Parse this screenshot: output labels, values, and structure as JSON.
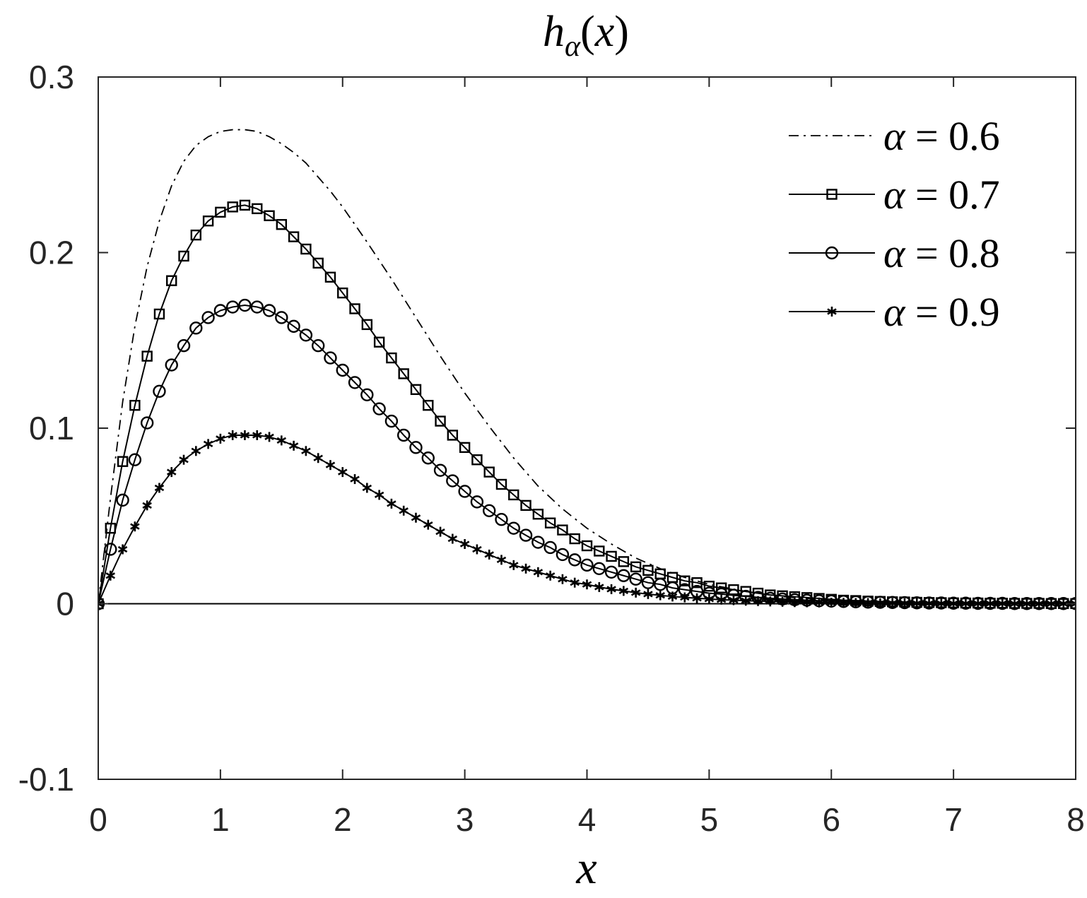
{
  "chart_data": {
    "type": "line",
    "title": {
      "base": "h",
      "subscript": "α",
      "argument": "x"
    },
    "xlabel": "x",
    "ylabel": "",
    "xlim": [
      0,
      8
    ],
    "ylim": [
      -0.1,
      0.3
    ],
    "xticks": [
      "0",
      "1",
      "2",
      "3",
      "4",
      "5",
      "6",
      "7",
      "8"
    ],
    "yticks": [
      "-0.1",
      "0",
      "0.1",
      "0.2",
      "0.3"
    ],
    "grid": false,
    "legend_position": "top-right",
    "zero_line": true,
    "sample_step": 0.1,
    "series": [
      {
        "name": "α = 0.6",
        "label_alpha": "α",
        "label_rest": " = 0.6",
        "line_style": "dashdot",
        "marker": "none",
        "color": "#000000",
        "points": [
          [
            0,
            0
          ],
          [
            0.1,
            0.06
          ],
          [
            0.2,
            0.115
          ],
          [
            0.3,
            0.158
          ],
          [
            0.4,
            0.192
          ],
          [
            0.5,
            0.218
          ],
          [
            0.6,
            0.238
          ],
          [
            0.7,
            0.252
          ],
          [
            0.8,
            0.261
          ],
          [
            0.9,
            0.266
          ],
          [
            1.0,
            0.269
          ],
          [
            1.1,
            0.27
          ],
          [
            1.2,
            0.27
          ],
          [
            1.3,
            0.269
          ],
          [
            1.4,
            0.266
          ],
          [
            1.5,
            0.262
          ],
          [
            1.6,
            0.257
          ],
          [
            1.7,
            0.251
          ],
          [
            1.8,
            0.243
          ],
          [
            1.9,
            0.235
          ],
          [
            2.0,
            0.226
          ],
          [
            2.2,
            0.206
          ],
          [
            2.4,
            0.185
          ],
          [
            2.6,
            0.163
          ],
          [
            2.8,
            0.141
          ],
          [
            3.0,
            0.12
          ],
          [
            3.2,
            0.101
          ],
          [
            3.4,
            0.083
          ],
          [
            3.6,
            0.067
          ],
          [
            3.8,
            0.054
          ],
          [
            4.0,
            0.043
          ],
          [
            4.2,
            0.034
          ],
          [
            4.4,
            0.026
          ],
          [
            4.6,
            0.02
          ],
          [
            4.8,
            0.015
          ],
          [
            5.0,
            0.011
          ],
          [
            5.3,
            0.007
          ],
          [
            5.6,
            0.004
          ],
          [
            6.0,
            0.002
          ],
          [
            6.5,
            0.001
          ],
          [
            7.0,
            0.0004
          ],
          [
            8.0,
            0.0
          ]
        ]
      },
      {
        "name": "α = 0.7",
        "label_alpha": "α",
        "label_rest": " = 0.7",
        "line_style": "solid",
        "marker": "square",
        "color": "#000000",
        "points": [
          [
            0,
            0
          ],
          [
            0.1,
            0.043
          ],
          [
            0.2,
            0.081
          ],
          [
            0.3,
            0.113
          ],
          [
            0.4,
            0.141
          ],
          [
            0.5,
            0.165
          ],
          [
            0.6,
            0.184
          ],
          [
            0.7,
            0.198
          ],
          [
            0.8,
            0.21
          ],
          [
            0.9,
            0.218
          ],
          [
            1.0,
            0.223
          ],
          [
            1.1,
            0.226
          ],
          [
            1.2,
            0.227
          ],
          [
            1.3,
            0.225
          ],
          [
            1.4,
            0.221
          ],
          [
            1.5,
            0.216
          ],
          [
            1.6,
            0.209
          ],
          [
            1.7,
            0.202
          ],
          [
            1.8,
            0.194
          ],
          [
            1.9,
            0.186
          ],
          [
            2.0,
            0.177
          ],
          [
            2.1,
            0.168
          ],
          [
            2.2,
            0.159
          ],
          [
            2.3,
            0.149
          ],
          [
            2.4,
            0.14
          ],
          [
            2.5,
            0.131
          ],
          [
            2.6,
            0.122
          ],
          [
            2.7,
            0.113
          ],
          [
            2.8,
            0.104
          ],
          [
            2.9,
            0.096
          ],
          [
            3.0,
            0.089
          ],
          [
            3.1,
            0.082
          ],
          [
            3.2,
            0.075
          ],
          [
            3.3,
            0.068
          ],
          [
            3.4,
            0.062
          ],
          [
            3.5,
            0.056
          ],
          [
            3.6,
            0.051
          ],
          [
            3.7,
            0.046
          ],
          [
            3.8,
            0.042
          ],
          [
            3.9,
            0.037
          ],
          [
            4.0,
            0.033
          ],
          [
            4.1,
            0.03
          ],
          [
            4.2,
            0.027
          ],
          [
            4.3,
            0.024
          ],
          [
            4.4,
            0.021
          ],
          [
            4.5,
            0.019
          ],
          [
            4.6,
            0.017
          ],
          [
            4.7,
            0.015
          ],
          [
            4.8,
            0.013
          ],
          [
            4.9,
            0.012
          ],
          [
            5.0,
            0.01
          ],
          [
            5.1,
            0.009
          ],
          [
            5.2,
            0.008
          ],
          [
            5.3,
            0.007
          ],
          [
            5.4,
            0.006
          ],
          [
            5.5,
            0.005
          ],
          [
            5.6,
            0.0045
          ],
          [
            5.7,
            0.004
          ],
          [
            5.8,
            0.0035
          ],
          [
            5.9,
            0.003
          ],
          [
            6.0,
            0.0025
          ],
          [
            6.1,
            0.002
          ],
          [
            6.2,
            0.0018
          ],
          [
            6.3,
            0.0015
          ],
          [
            6.4,
            0.0013
          ],
          [
            6.5,
            0.0011
          ],
          [
            6.6,
            0.001
          ],
          [
            6.7,
            0.0008
          ],
          [
            6.8,
            0.0007
          ],
          [
            6.9,
            0.0006
          ],
          [
            7.0,
            0.0005
          ],
          [
            7.1,
            0.0004
          ],
          [
            7.2,
            0.0004
          ],
          [
            7.3,
            0.0003
          ],
          [
            7.4,
            0.0003
          ],
          [
            7.5,
            0.0002
          ],
          [
            7.6,
            0.0002
          ],
          [
            7.7,
            0.0002
          ],
          [
            7.8,
            0.0001
          ],
          [
            7.9,
            0.0001
          ],
          [
            8.0,
            0.0001
          ]
        ]
      },
      {
        "name": "α = 0.8",
        "label_alpha": "α",
        "label_rest": " = 0.8",
        "line_style": "solid",
        "marker": "circle",
        "color": "#000000",
        "points": [
          [
            0,
            0
          ],
          [
            0.1,
            0.031
          ],
          [
            0.2,
            0.059
          ],
          [
            0.3,
            0.082
          ],
          [
            0.4,
            0.103
          ],
          [
            0.5,
            0.121
          ],
          [
            0.6,
            0.136
          ],
          [
            0.7,
            0.147
          ],
          [
            0.8,
            0.157
          ],
          [
            0.9,
            0.163
          ],
          [
            1.0,
            0.167
          ],
          [
            1.1,
            0.169
          ],
          [
            1.2,
            0.17
          ],
          [
            1.3,
            0.169
          ],
          [
            1.4,
            0.167
          ],
          [
            1.5,
            0.163
          ],
          [
            1.6,
            0.158
          ],
          [
            1.7,
            0.153
          ],
          [
            1.8,
            0.147
          ],
          [
            1.9,
            0.14
          ],
          [
            2.0,
            0.133
          ],
          [
            2.1,
            0.126
          ],
          [
            2.2,
            0.119
          ],
          [
            2.3,
            0.111
          ],
          [
            2.4,
            0.104
          ],
          [
            2.5,
            0.096
          ],
          [
            2.6,
            0.089
          ],
          [
            2.7,
            0.083
          ],
          [
            2.8,
            0.076
          ],
          [
            2.9,
            0.07
          ],
          [
            3.0,
            0.064
          ],
          [
            3.1,
            0.058
          ],
          [
            3.2,
            0.053
          ],
          [
            3.3,
            0.048
          ],
          [
            3.4,
            0.043
          ],
          [
            3.5,
            0.039
          ],
          [
            3.6,
            0.035
          ],
          [
            3.7,
            0.032
          ],
          [
            3.8,
            0.028
          ],
          [
            3.9,
            0.025
          ],
          [
            4.0,
            0.022
          ],
          [
            4.1,
            0.02
          ],
          [
            4.2,
            0.018
          ],
          [
            4.3,
            0.016
          ],
          [
            4.4,
            0.014
          ],
          [
            4.5,
            0.012
          ],
          [
            4.6,
            0.011
          ],
          [
            4.7,
            0.009
          ],
          [
            4.8,
            0.008
          ],
          [
            4.9,
            0.007
          ],
          [
            5.0,
            0.006
          ],
          [
            5.1,
            0.0055
          ],
          [
            5.2,
            0.0048
          ],
          [
            5.3,
            0.0042
          ],
          [
            5.4,
            0.0036
          ],
          [
            5.5,
            0.0031
          ],
          [
            5.6,
            0.0027
          ],
          [
            5.7,
            0.0023
          ],
          [
            5.8,
            0.002
          ],
          [
            5.9,
            0.0017
          ],
          [
            6.0,
            0.0015
          ],
          [
            6.1,
            0.0013
          ],
          [
            6.2,
            0.0011
          ],
          [
            6.3,
            0.0009
          ],
          [
            6.4,
            0.0008
          ],
          [
            6.5,
            0.0007
          ],
          [
            6.6,
            0.0006
          ],
          [
            6.7,
            0.0005
          ],
          [
            6.8,
            0.0004
          ],
          [
            6.9,
            0.0004
          ],
          [
            7.0,
            0.0003
          ],
          [
            7.1,
            0.0003
          ],
          [
            7.2,
            0.0002
          ],
          [
            7.3,
            0.0002
          ],
          [
            7.4,
            0.0002
          ],
          [
            7.5,
            0.0001
          ],
          [
            7.6,
            0.0001
          ],
          [
            7.7,
            0.0001
          ],
          [
            7.8,
            0.0001
          ],
          [
            7.9,
            0.0001
          ],
          [
            8.0,
            0.0001
          ]
        ]
      },
      {
        "name": "α = 0.9",
        "label_alpha": "α",
        "label_rest": " = 0.9",
        "line_style": "solid",
        "marker": "asterisk",
        "color": "#000000",
        "points": [
          [
            0,
            0
          ],
          [
            0.1,
            0.016
          ],
          [
            0.2,
            0.031
          ],
          [
            0.3,
            0.044
          ],
          [
            0.4,
            0.056
          ],
          [
            0.5,
            0.066
          ],
          [
            0.6,
            0.075
          ],
          [
            0.7,
            0.082
          ],
          [
            0.8,
            0.087
          ],
          [
            0.9,
            0.091
          ],
          [
            1.0,
            0.094
          ],
          [
            1.1,
            0.096
          ],
          [
            1.2,
            0.096
          ],
          [
            1.3,
            0.096
          ],
          [
            1.4,
            0.095
          ],
          [
            1.5,
            0.093
          ],
          [
            1.6,
            0.09
          ],
          [
            1.7,
            0.087
          ],
          [
            1.8,
            0.083
          ],
          [
            1.9,
            0.079
          ],
          [
            2.0,
            0.075
          ],
          [
            2.1,
            0.071
          ],
          [
            2.2,
            0.066
          ],
          [
            2.3,
            0.062
          ],
          [
            2.4,
            0.057
          ],
          [
            2.5,
            0.053
          ],
          [
            2.6,
            0.049
          ],
          [
            2.7,
            0.045
          ],
          [
            2.8,
            0.041
          ],
          [
            2.9,
            0.037
          ],
          [
            3.0,
            0.034
          ],
          [
            3.1,
            0.031
          ],
          [
            3.2,
            0.028
          ],
          [
            3.3,
            0.025
          ],
          [
            3.4,
            0.022
          ],
          [
            3.5,
            0.02
          ],
          [
            3.6,
            0.018
          ],
          [
            3.7,
            0.016
          ],
          [
            3.8,
            0.014
          ],
          [
            3.9,
            0.012
          ],
          [
            4.0,
            0.011
          ],
          [
            4.1,
            0.0095
          ],
          [
            4.2,
            0.0083
          ],
          [
            4.3,
            0.0073
          ],
          [
            4.4,
            0.0063
          ],
          [
            4.5,
            0.0055
          ],
          [
            4.6,
            0.0048
          ],
          [
            4.7,
            0.0041
          ],
          [
            4.8,
            0.0036
          ],
          [
            4.9,
            0.0031
          ],
          [
            5.0,
            0.0027
          ],
          [
            5.1,
            0.0023
          ],
          [
            5.2,
            0.002
          ],
          [
            5.3,
            0.0017
          ],
          [
            5.4,
            0.0015
          ],
          [
            5.5,
            0.0013
          ],
          [
            5.6,
            0.0011
          ],
          [
            5.7,
            0.0009
          ],
          [
            5.8,
            0.0008
          ],
          [
            5.9,
            0.0007
          ],
          [
            6.0,
            0.0006
          ],
          [
            6.1,
            0.0005
          ],
          [
            6.2,
            0.0004
          ],
          [
            6.3,
            0.0004
          ],
          [
            6.4,
            0.0003
          ],
          [
            6.5,
            0.0003
          ],
          [
            6.6,
            0.0002
          ],
          [
            6.7,
            0.0002
          ],
          [
            6.8,
            0.0002
          ],
          [
            6.9,
            0.0001
          ],
          [
            7.0,
            0.0001
          ],
          [
            7.1,
            0.0001
          ],
          [
            7.2,
            0.0001
          ],
          [
            7.3,
            0.0001
          ],
          [
            7.4,
            0.0001
          ],
          [
            7.5,
            0.0
          ],
          [
            7.6,
            0.0
          ],
          [
            7.7,
            0.0
          ],
          [
            7.8,
            0.0
          ],
          [
            7.9,
            0.0
          ],
          [
            8.0,
            0.0
          ]
        ]
      }
    ]
  }
}
